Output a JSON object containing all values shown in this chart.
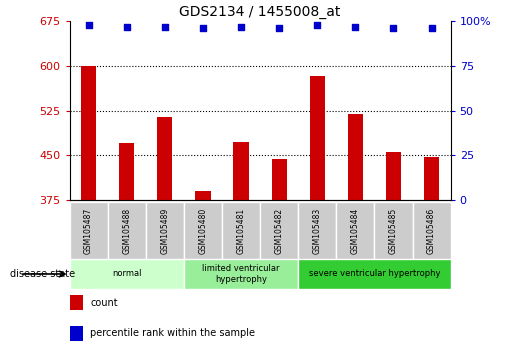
{
  "title": "GDS2134 / 1455008_at",
  "samples": [
    "GSM105487",
    "GSM105488",
    "GSM105489",
    "GSM105480",
    "GSM105481",
    "GSM105482",
    "GSM105483",
    "GSM105484",
    "GSM105485",
    "GSM105486"
  ],
  "counts": [
    600,
    470,
    515,
    390,
    473,
    443,
    583,
    520,
    455,
    448
  ],
  "percentiles": [
    98,
    97,
    97,
    96,
    97,
    96,
    98,
    97,
    96,
    96
  ],
  "ylim_left": [
    375,
    675
  ],
  "ylim_right": [
    0,
    100
  ],
  "yticks_left": [
    375,
    450,
    525,
    600,
    675
  ],
  "yticks_right": [
    0,
    25,
    50,
    75,
    100
  ],
  "bar_color": "#cc0000",
  "dot_color": "#0000cc",
  "groups": [
    {
      "label": "normal",
      "start": 0,
      "end": 3,
      "color": "#ccffcc"
    },
    {
      "label": "limited ventricular\nhypertrophy",
      "start": 3,
      "end": 6,
      "color": "#99ee99"
    },
    {
      "label": "severe ventricular hypertrophy",
      "start": 6,
      "end": 10,
      "color": "#33cc33"
    }
  ],
  "disease_state_label": "disease state",
  "legend_count_label": "count",
  "legend_percentile_label": "percentile rank within the sample",
  "background_color": "#ffffff",
  "tick_label_color_left": "#cc0000",
  "tick_label_color_right": "#0000cc",
  "bar_width": 0.4,
  "sample_box_color": "#cccccc"
}
